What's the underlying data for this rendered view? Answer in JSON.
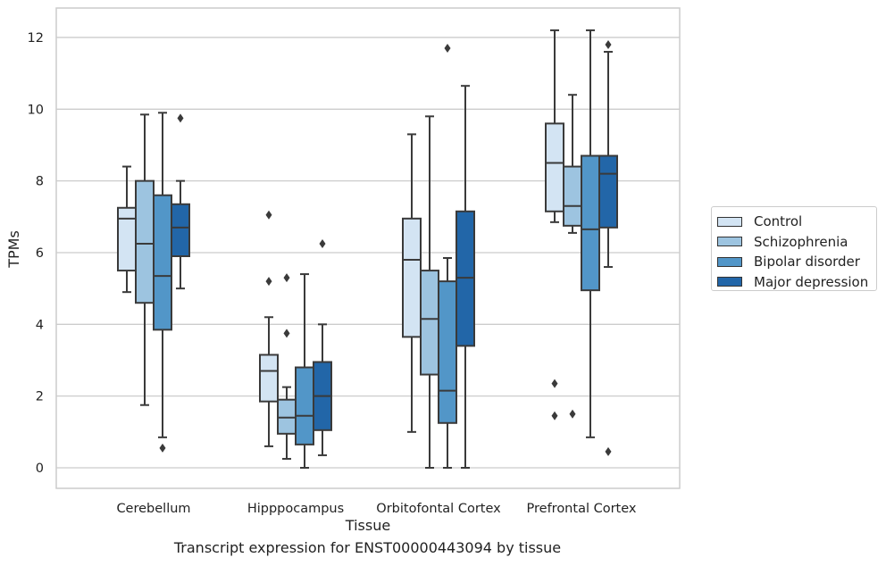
{
  "chart_data": {
    "type": "box",
    "title": "Transcript expression for ENST00000443094 by tissue",
    "xlabel": "Tissue",
    "ylabel": "TPMs",
    "categories": [
      "Cerebellum",
      "Hipppocampus",
      "Orbitofontal Cortex",
      "Prefrontal Cortex"
    ],
    "ylim": [
      -0.6,
      12.8
    ],
    "yticks": [
      0,
      2,
      4,
      6,
      8,
      10,
      12
    ],
    "grid": "horizontal",
    "legend_position": "right",
    "series": [
      {
        "name": "Control",
        "color": "#d3e4f3",
        "boxes": [
          {
            "whisker_low": 4.9,
            "q1": 5.5,
            "median": 6.95,
            "q3": 7.25,
            "whisker_high": 8.4,
            "outliers": []
          },
          {
            "whisker_low": 0.6,
            "q1": 1.85,
            "median": 2.7,
            "q3": 3.15,
            "whisker_high": 4.2,
            "outliers": [
              5.2,
              7.05
            ]
          },
          {
            "whisker_low": 1.0,
            "q1": 3.65,
            "median": 5.8,
            "q3": 6.95,
            "whisker_high": 9.3,
            "outliers": []
          },
          {
            "whisker_low": 6.85,
            "q1": 7.15,
            "median": 8.5,
            "q3": 9.6,
            "whisker_high": 12.2,
            "outliers": [
              1.45,
              2.35
            ]
          }
        ]
      },
      {
        "name": "Schizophrenia",
        "color": "#9dc4e0",
        "boxes": [
          {
            "whisker_low": 1.75,
            "q1": 4.6,
            "median": 6.25,
            "q3": 8.0,
            "whisker_high": 9.85,
            "outliers": []
          },
          {
            "whisker_low": 0.25,
            "q1": 0.95,
            "median": 1.4,
            "q3": 1.9,
            "whisker_high": 2.25,
            "outliers": [
              3.75,
              5.3
            ]
          },
          {
            "whisker_low": 0.0,
            "q1": 2.6,
            "median": 4.15,
            "q3": 5.5,
            "whisker_high": 9.8,
            "outliers": []
          },
          {
            "whisker_low": 6.55,
            "q1": 6.75,
            "median": 7.3,
            "q3": 8.4,
            "whisker_high": 10.4,
            "outliers": [
              1.5
            ]
          }
        ]
      },
      {
        "name": "Bipolar disorder",
        "color": "#5296c8",
        "boxes": [
          {
            "whisker_low": 0.85,
            "q1": 3.85,
            "median": 5.35,
            "q3": 7.6,
            "whisker_high": 9.9,
            "outliers": [
              0.55
            ]
          },
          {
            "whisker_low": 0.0,
            "q1": 0.65,
            "median": 1.45,
            "q3": 2.8,
            "whisker_high": 5.4,
            "outliers": []
          },
          {
            "whisker_low": 0.0,
            "q1": 1.25,
            "median": 2.15,
            "q3": 5.2,
            "whisker_high": 5.85,
            "outliers": [
              11.7
            ]
          },
          {
            "whisker_low": 0.85,
            "q1": 4.95,
            "median": 6.65,
            "q3": 8.7,
            "whisker_high": 12.2,
            "outliers": []
          }
        ]
      },
      {
        "name": "Major depression",
        "color": "#2266a8",
        "boxes": [
          {
            "whisker_low": 5.0,
            "q1": 5.9,
            "median": 6.7,
            "q3": 7.35,
            "whisker_high": 8.0,
            "outliers": [
              9.75
            ]
          },
          {
            "whisker_low": 0.35,
            "q1": 1.05,
            "median": 2.0,
            "q3": 2.95,
            "whisker_high": 4.0,
            "outliers": [
              6.25
            ]
          },
          {
            "whisker_low": 0.0,
            "q1": 3.4,
            "median": 5.3,
            "q3": 7.15,
            "whisker_high": 10.65,
            "outliers": []
          },
          {
            "whisker_low": 5.6,
            "q1": 6.7,
            "median": 8.2,
            "q3": 8.7,
            "whisker_high": 11.6,
            "outliers": [
              0.45,
              11.8
            ]
          }
        ]
      }
    ]
  }
}
